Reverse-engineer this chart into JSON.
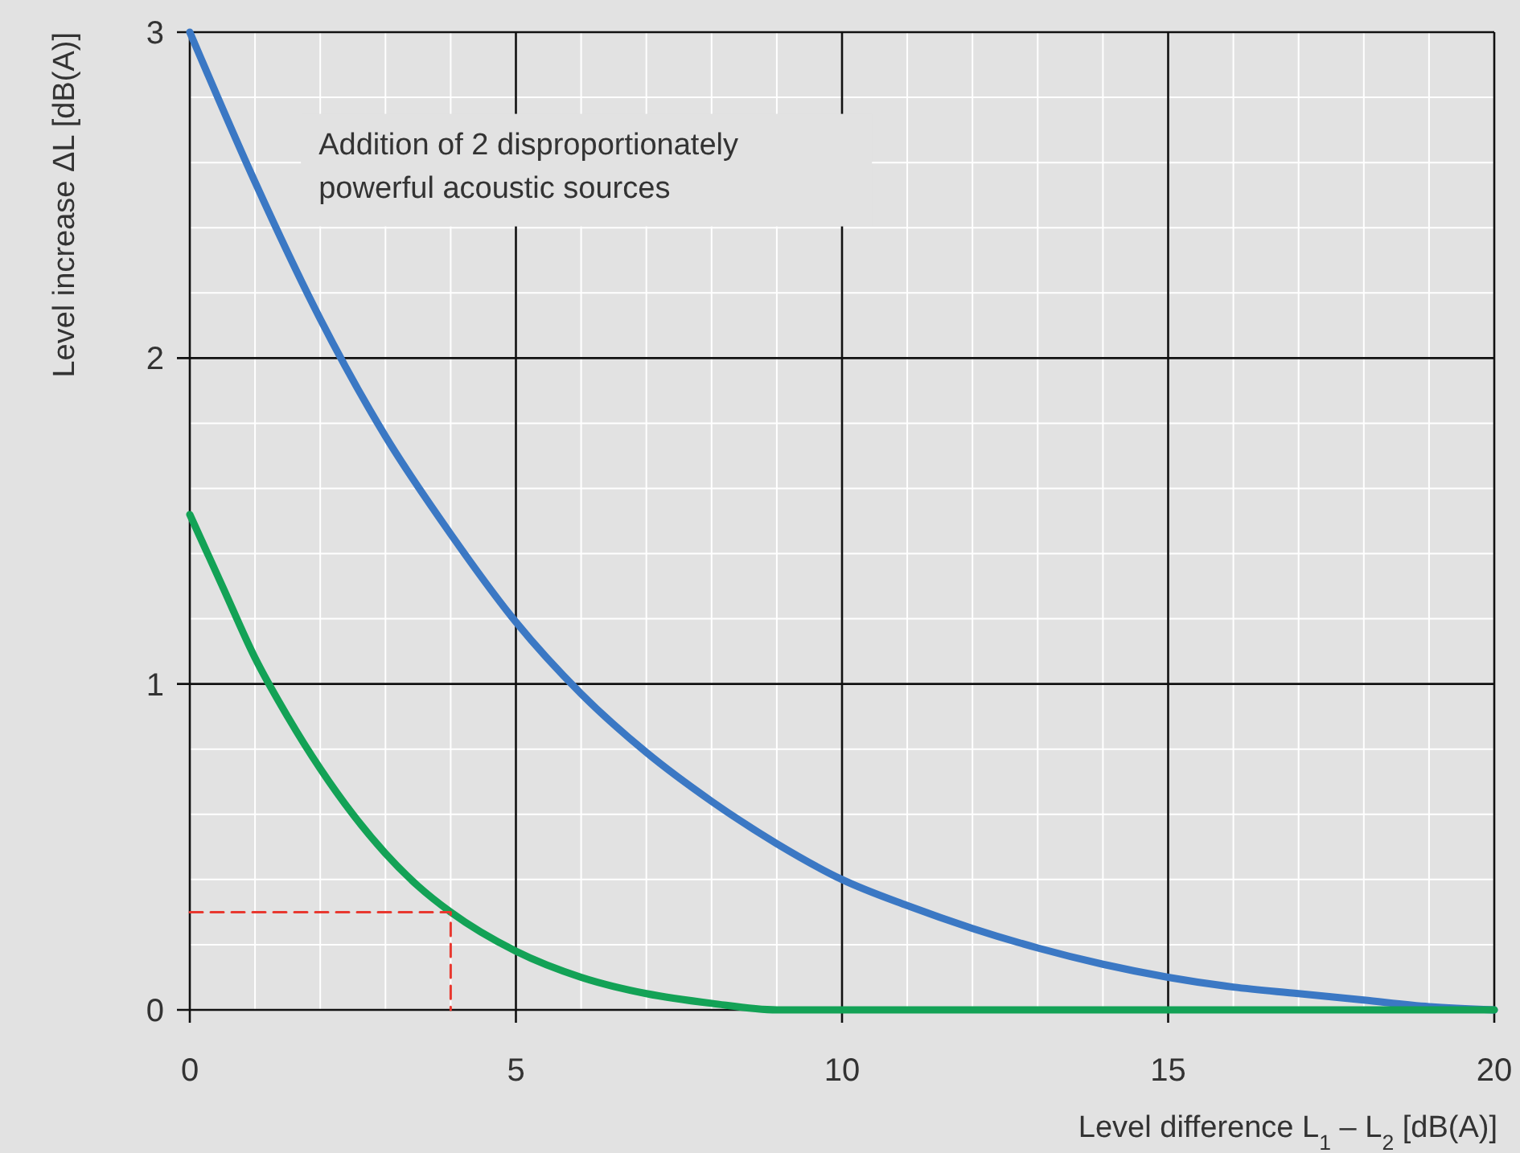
{
  "chart_data": {
    "type": "line",
    "xlabel": "Level difference L$_{1}$ – L$_{2}$ [dB(A)]",
    "ylabel": "Level increase ΔL [dB(A)]",
    "annotations": [
      "Addition of 2 disproportionately powerful acoustic sources"
    ],
    "xlim": [
      0,
      20
    ],
    "ylim": [
      0,
      3
    ],
    "xticks": [
      0,
      {
        "value": 1,
        "label": null
      },
      {
        "value": 2,
        "label": null
      },
      {
        "value": 3,
        "label": null
      },
      {
        "value": 4,
        "label": null
      },
      5,
      {
        "value": 6,
        "label": null
      },
      {
        "value": 7,
        "label": null
      },
      {
        "value": 8,
        "label": null
      },
      {
        "value": 9,
        "label": null
      },
      10,
      {
        "value": 11,
        "label": null
      },
      {
        "value": 12,
        "label": null
      },
      {
        "value": 13,
        "label": null
      },
      {
        "value": 14,
        "label": null
      },
      15,
      {
        "value": 16,
        "label": null
      },
      {
        "value": 17,
        "label": null
      },
      {
        "value": 18,
        "label": null
      },
      {
        "value": 19,
        "label": null
      },
      20
    ],
    "yticks": [
      0,
      {
        "value": 0.2,
        "label": null
      },
      {
        "value": 0.4,
        "label": null
      },
      {
        "value": 0.6,
        "label": null
      },
      {
        "value": 0.8,
        "label": null
      },
      1,
      {
        "value": 1.2,
        "label": null
      },
      {
        "value": 1.4,
        "label": null
      },
      {
        "value": 1.6,
        "label": null
      },
      {
        "value": 1.8,
        "label": null
      },
      2,
      {
        "value": 2.2,
        "label": null
      },
      {
        "value": 2.4,
        "label": null
      },
      {
        "value": 2.6,
        "label": null
      },
      {
        "value": 2.8,
        "label": null
      },
      3
    ],
    "grid": true,
    "marker": "none",
    "line_style": "solid",
    "series": [
      {
        "color": "#3b78c4",
        "x": [
          0,
          1,
          2,
          3,
          4,
          5,
          6,
          7,
          8,
          9,
          10,
          11,
          12,
          13,
          14,
          15,
          16,
          17,
          18,
          19,
          20
        ],
        "values": [
          3.0,
          2.54,
          2.12,
          1.76,
          1.46,
          1.19,
          0.97,
          0.79,
          0.64,
          0.51,
          0.4,
          0.32,
          0.25,
          0.19,
          0.14,
          0.1,
          0.07,
          0.05,
          0.03,
          0.01,
          0
        ]
      },
      {
        "color": "#13a256",
        "x": [
          0,
          0.5,
          1,
          1.5,
          2,
          2.5,
          3,
          3.5,
          4,
          5,
          6,
          7,
          8,
          9,
          10,
          20
        ],
        "values": [
          1.52,
          1.3,
          1.08,
          0.9,
          0.74,
          0.6,
          0.48,
          0.38,
          0.3,
          0.18,
          0.1,
          0.05,
          0.02,
          0,
          0,
          0
        ]
      },
      {
        "color": "#e8382f",
        "line_style": "dashed",
        "x": [
          0,
          4,
          4
        ],
        "values": [
          0.3,
          0.3,
          0
        ]
      }
    ]
  }
}
